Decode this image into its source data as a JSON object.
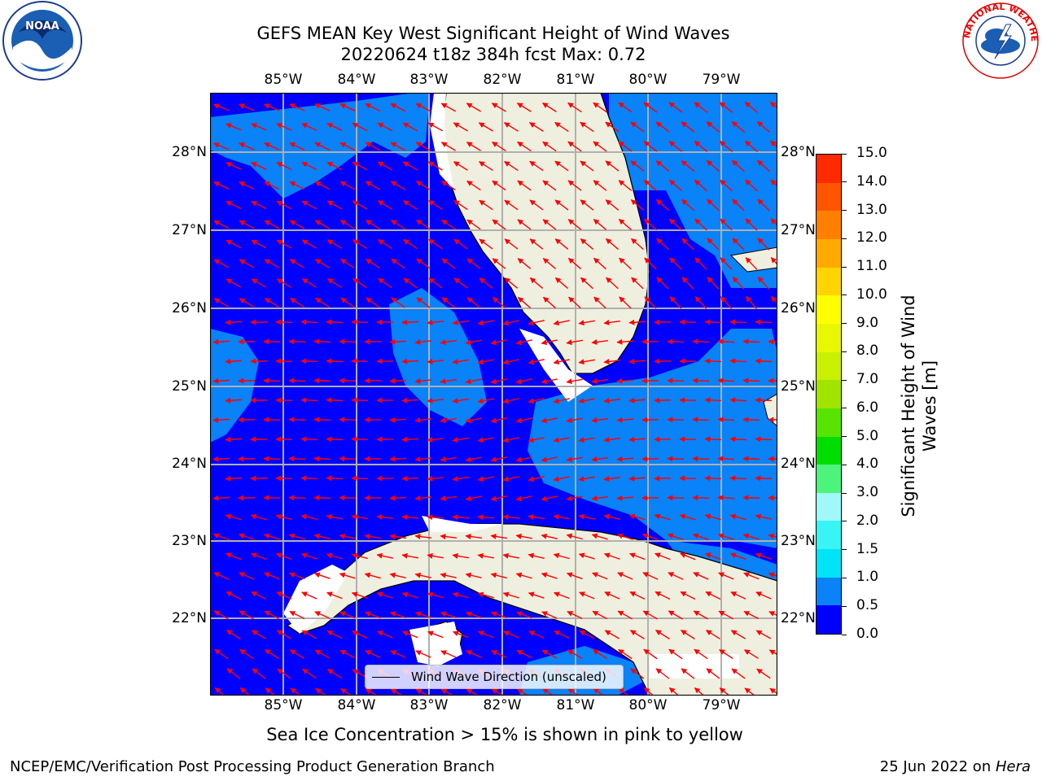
{
  "title": {
    "line1": "GEFS MEAN Key West Significant Height of Wind Waves",
    "line2": "20220624 t18z 384h fcst   Max: 0.72"
  },
  "map": {
    "lon_labels": [
      "85°W",
      "84°W",
      "83°W",
      "82°W",
      "81°W",
      "80°W",
      "79°W"
    ],
    "lat_labels": [
      "28°N",
      "27°N",
      "26°N",
      "25°N",
      "24°N",
      "23°N",
      "22°N"
    ],
    "legend_label": "Wind Wave Direction (unscaled)",
    "colors": {
      "ocean_low": "#0000ff",
      "ocean_mid": "#0a82f8",
      "land": "#efefdf",
      "arrow": "#ff0000",
      "grid": "#b0b0b0"
    }
  },
  "colorbar": {
    "title_line1": "Significant Height of Wind",
    "title_line2": "Waves [m]",
    "ticks": [
      "0.0",
      "0.5",
      "1.0",
      "1.5",
      "2.0",
      "3.0",
      "4.0",
      "5.0",
      "6.0",
      "7.0",
      "8.0",
      "9.0",
      "10.0",
      "11.0",
      "12.0",
      "13.0",
      "14.0",
      "15.0"
    ],
    "colors": [
      "#0000ff",
      "#0a82f8",
      "#00e4f8",
      "#38f4f4",
      "#a0f8f8",
      "#4cf47c",
      "#00de00",
      "#58e400",
      "#a0e400",
      "#c8f000",
      "#e8f800",
      "#ffff00",
      "#ffd400",
      "#ffaa00",
      "#ff8000",
      "#ff5500",
      "#ff2a00",
      "#ff0000"
    ]
  },
  "subtitle": "Sea Ice Concentration > 15% is shown in pink to yellow",
  "footer": {
    "left": "NCEP/EMC/Verification Post Processing Product Generation Branch",
    "date": "25 Jun 2022 on ",
    "machine": "Hera"
  },
  "logos": {
    "noaa": "NOAA",
    "nws": "NATIONAL WEATHER SERVICE"
  }
}
